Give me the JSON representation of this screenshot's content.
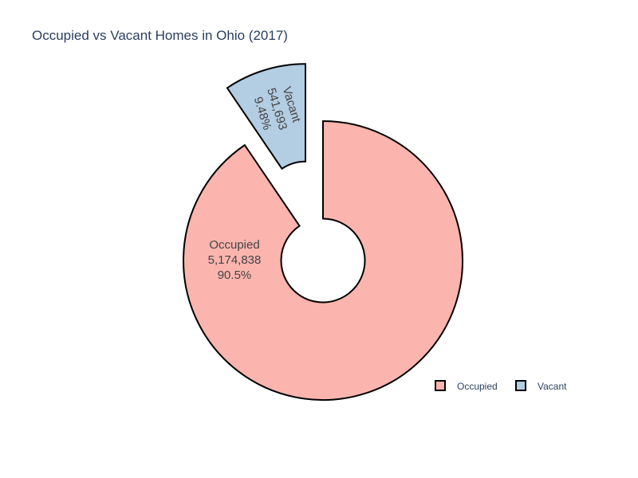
{
  "chart_data": {
    "type": "pie",
    "title": "Occupied vs Vacant Homes in Ohio (2017)",
    "hole": 0.3,
    "legend_position": "bottom-right",
    "slices": [
      {
        "label": "Occupied",
        "value": 5174838,
        "value_text": "5,174,838",
        "percent_text": "90.5%",
        "color": "#fbb4ae",
        "pulled": false
      },
      {
        "label": "Vacant",
        "value": 541693,
        "value_text": "541,693",
        "percent_text": "9.48%",
        "color": "#b3cde3",
        "pulled": true
      }
    ],
    "legend": [
      "Occupied",
      "Vacant"
    ],
    "outline_color": "#000000"
  }
}
